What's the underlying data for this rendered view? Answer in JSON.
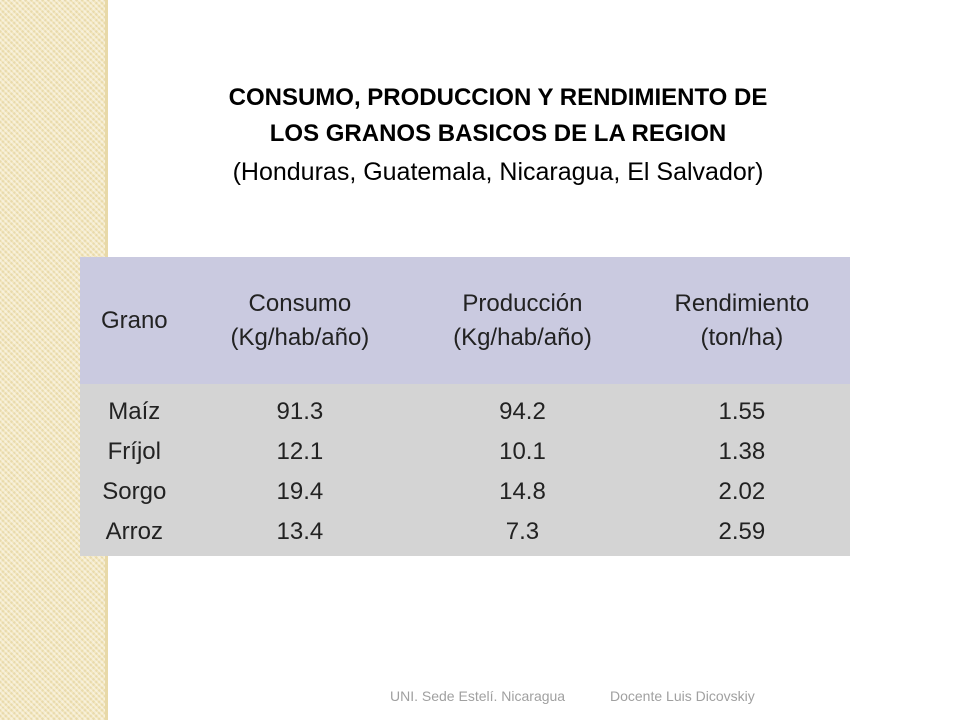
{
  "title": {
    "line1": "CONSUMO, PRODUCCION Y RENDIMIENTO DE",
    "line2": "LOS GRANOS BASICOS DE LA REGION",
    "subtitle": "(Honduras, Guatemala, Nicaragua, El Salvador)"
  },
  "table": {
    "header": [
      "Grano",
      "Consumo\n(Kg/hab/año)",
      "Producción\n(Kg/hab/año)",
      "Rendimiento\n(ton/ha)"
    ],
    "rows": [
      [
        "Maíz",
        91.3,
        94.2,
        1.55
      ],
      [
        "Fríjol",
        12.1,
        10.1,
        1.38
      ],
      [
        "Sorgo",
        19.4,
        14.8,
        2.02
      ],
      [
        "Arroz",
        13.4,
        7.3,
        2.59
      ]
    ]
  },
  "footer": {
    "left": "UNI. Sede Estelí. Nicaragua",
    "right": "Docente Luis Dicovskiy"
  }
}
